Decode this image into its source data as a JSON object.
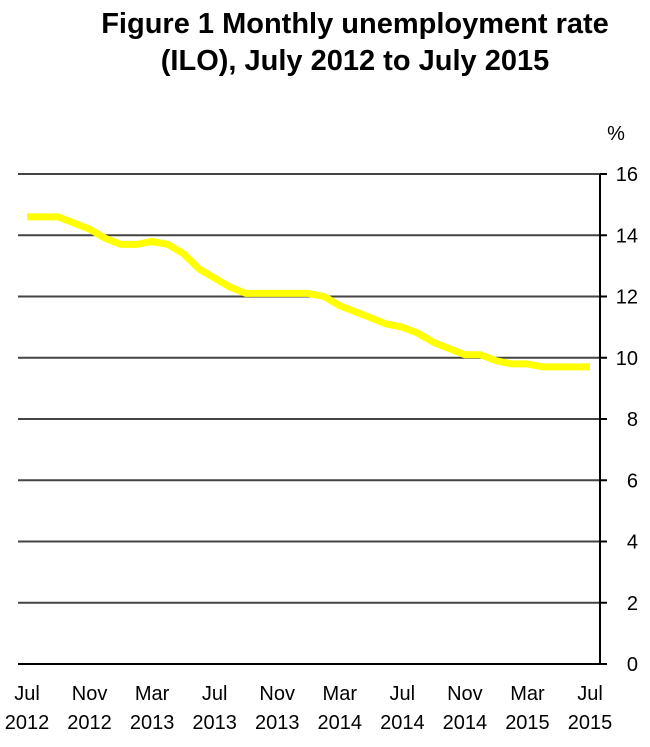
{
  "title_line1": "Figure 1 Monthly unemployment rate",
  "title_line2": "(ILO), July 2012 to July 2015",
  "chart_data": {
    "type": "line",
    "title": "Figure 1 Monthly unemployment rate (ILO), July 2012 to July 2015",
    "xlabel": "",
    "ylabel": "%",
    "ylim": [
      0,
      16
    ],
    "grid": true,
    "y_axis_side": "right",
    "y_ticks": [
      "0",
      "2",
      "4",
      "6",
      "8",
      "10",
      "12",
      "14",
      "16"
    ],
    "x_tick_labels": [
      [
        "Jul",
        "2012"
      ],
      [
        "Nov",
        "2012"
      ],
      [
        "Mar",
        "2013"
      ],
      [
        "Jul",
        "2013"
      ],
      [
        "Nov",
        "2013"
      ],
      [
        "Mar",
        "2014"
      ],
      [
        "Jul",
        "2014"
      ],
      [
        "Nov",
        "2014"
      ],
      [
        "Mar",
        "2015"
      ],
      [
        "Jul",
        "2015"
      ]
    ],
    "x": [
      "Jul 2012",
      "Aug 2012",
      "Sep 2012",
      "Oct 2012",
      "Nov 2012",
      "Dec 2012",
      "Jan 2013",
      "Feb 2013",
      "Mar 2013",
      "Apr 2013",
      "May 2013",
      "Jun 2013",
      "Jul 2013",
      "Aug 2013",
      "Sep 2013",
      "Oct 2013",
      "Nov 2013",
      "Dec 2013",
      "Jan 2014",
      "Feb 2014",
      "Mar 2014",
      "Apr 2014",
      "May 2014",
      "Jun 2014",
      "Jul 2014",
      "Aug 2014",
      "Sep 2014",
      "Oct 2014",
      "Nov 2014",
      "Dec 2014",
      "Jan 2015",
      "Feb 2015",
      "Mar 2015",
      "Apr 2015",
      "May 2015",
      "Jun 2015",
      "Jul 2015"
    ],
    "series": [
      {
        "name": "",
        "color": "#ffff00",
        "values": [
          14.6,
          14.6,
          14.6,
          14.4,
          14.2,
          13.9,
          13.7,
          13.7,
          13.8,
          13.7,
          13.4,
          12.9,
          12.6,
          12.3,
          12.1,
          12.1,
          12.1,
          12.1,
          12.1,
          12.0,
          11.7,
          11.5,
          11.3,
          11.1,
          11.0,
          10.8,
          10.5,
          10.3,
          10.1,
          10.1,
          9.9,
          9.8,
          9.8,
          9.7,
          9.7,
          9.7,
          9.7
        ]
      }
    ]
  }
}
